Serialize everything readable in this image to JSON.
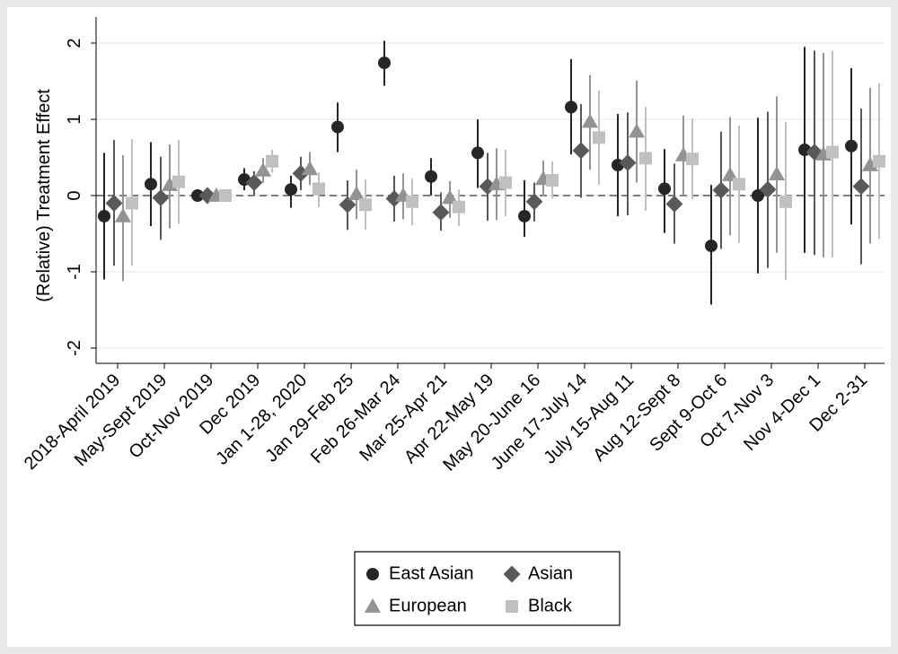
{
  "chart_data": {
    "type": "errorbar",
    "y_label": "(Relative) Treatment Effect",
    "categories": [
      "2018-April 2019",
      "May-Sept 2019",
      "Oct-Nov 2019",
      "Dec 2019",
      "Jan 1-28, 2020",
      "Jan 29-Feb 25",
      "Feb 26-Mar 24",
      "Mar 25-Apr 21",
      "Apr 22-May 19",
      "May 20-June 16",
      "June 17-July 14",
      "July 15-Aug 11",
      "Aug 12-Sept 8",
      "Sept 9-Oct 6",
      "Oct 7-Nov 3",
      "Nov 4-Dec 1",
      "Dec 2-31"
    ],
    "ylim": [
      -2.2,
      2.2
    ],
    "yticks": [
      -2,
      -1,
      0,
      1,
      2
    ],
    "grid": true,
    "reference_line": 0,
    "series": [
      {
        "name": "East Asian",
        "color": "#262626",
        "marker": "circle",
        "values": [
          -0.27,
          0.15,
          0,
          0.21,
          0.08,
          0.9,
          1.74,
          0.25,
          0.56,
          -0.27,
          1.16,
          0.4,
          0.09,
          -0.66,
          0,
          0.6,
          0.65
        ],
        "ci_low": [
          -1.1,
          -0.4,
          0,
          0.07,
          -0.16,
          0.57,
          1.44,
          0,
          0.1,
          -0.54,
          0.54,
          -0.27,
          -0.49,
          -1.43,
          -1.02,
          -0.75,
          -0.38
        ],
        "ci_high": [
          0.56,
          0.7,
          0,
          0.36,
          0.26,
          1.22,
          2.03,
          0.49,
          1.0,
          0.2,
          1.79,
          1.07,
          0.61,
          0.14,
          1.02,
          1.95,
          1.67
        ]
      },
      {
        "name": "Asian",
        "color": "#595959",
        "marker": "diamond",
        "values": [
          -0.1,
          -0.03,
          0,
          0.17,
          0.29,
          -0.12,
          -0.04,
          -0.22,
          0.12,
          -0.08,
          0.59,
          0.43,
          -0.11,
          0.07,
          0.08,
          0.57,
          0.12
        ],
        "ci_low": [
          -0.92,
          -0.58,
          0,
          0.01,
          0.07,
          -0.45,
          -0.34,
          -0.46,
          -0.33,
          -0.34,
          -0.03,
          -0.26,
          -0.63,
          -0.7,
          -0.95,
          -0.78,
          -0.9
        ],
        "ci_high": [
          0.73,
          0.51,
          0,
          0.32,
          0.51,
          0.2,
          0.26,
          0.04,
          0.56,
          0.17,
          1.2,
          1.09,
          0.42,
          0.84,
          1.1,
          1.9,
          1.14
        ]
      },
      {
        "name": "European",
        "color": "#939393",
        "marker": "triangle",
        "values": [
          -0.27,
          0.14,
          0,
          0.33,
          0.35,
          0.02,
          0,
          -0.03,
          0.15,
          0.22,
          0.97,
          0.84,
          0.53,
          0.27,
          0.28,
          0.54,
          0.4
        ],
        "ci_low": [
          -1.12,
          -0.43,
          0,
          0.17,
          0.14,
          -0.31,
          -0.31,
          -0.29,
          -0.32,
          -0.01,
          0.34,
          0.17,
          0,
          -0.52,
          -0.75,
          -0.81,
          -0.63
        ],
        "ci_high": [
          0.53,
          0.67,
          0,
          0.49,
          0.57,
          0.34,
          0.29,
          0.19,
          0.62,
          0.46,
          1.58,
          1.51,
          1.05,
          1.03,
          1.3,
          1.87,
          1.41
        ]
      },
      {
        "name": "Black",
        "color": "#c0c0c0",
        "marker": "square",
        "values": [
          -0.1,
          0.18,
          0,
          0.45,
          0.09,
          -0.12,
          -0.08,
          -0.15,
          0.17,
          0.2,
          0.76,
          0.49,
          0.48,
          0.15,
          -0.08,
          0.57,
          0.45
        ],
        "ci_low": [
          -0.92,
          -0.37,
          0,
          0.3,
          -0.15,
          -0.45,
          -0.39,
          -0.4,
          -0.27,
          -0.04,
          0.14,
          -0.2,
          -0.05,
          -0.62,
          -1.11,
          -0.81,
          -0.57
        ],
        "ci_high": [
          0.74,
          0.73,
          0,
          0.6,
          0.31,
          0.21,
          0.22,
          0.08,
          0.6,
          0.45,
          1.38,
          1.16,
          1.01,
          0.92,
          0.96,
          1.9,
          1.47
        ]
      }
    ]
  }
}
